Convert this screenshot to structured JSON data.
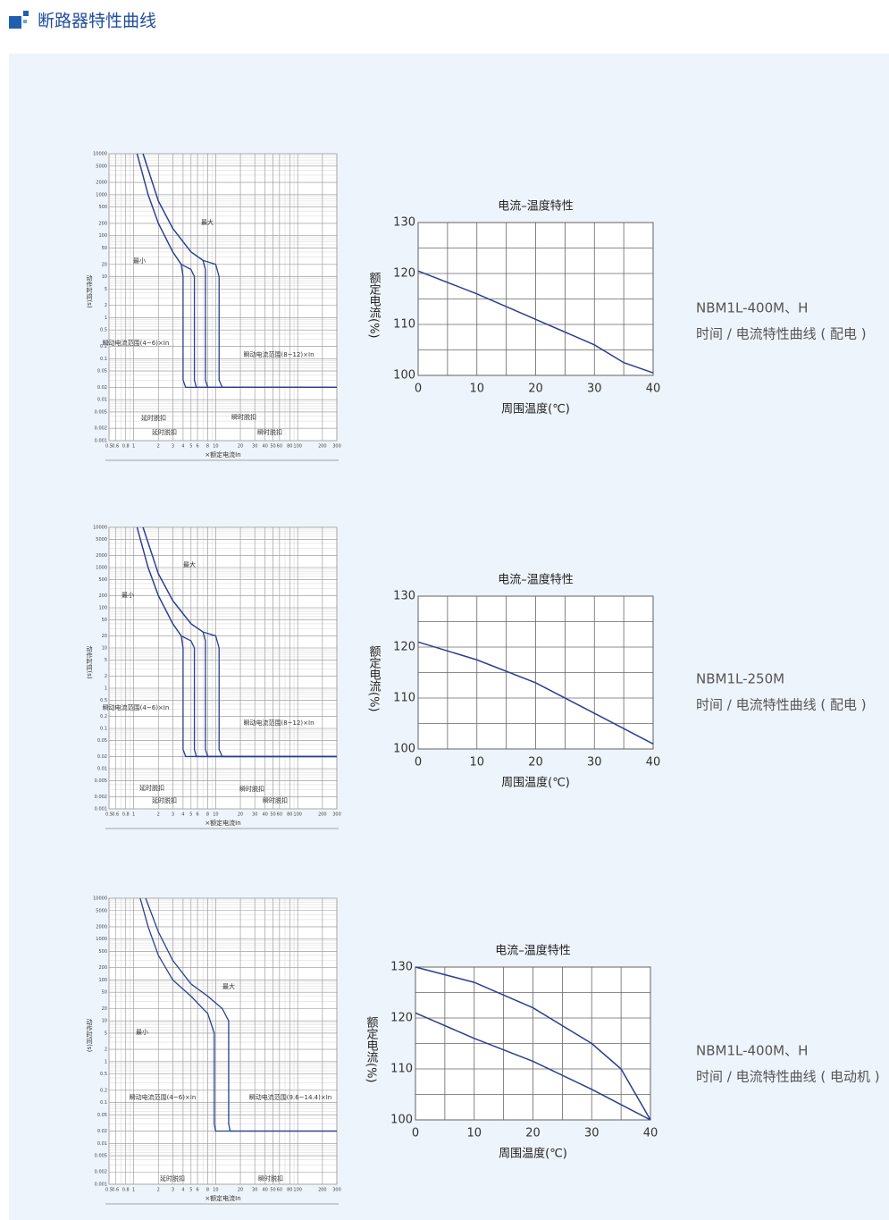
{
  "header": {
    "title": "断路器特性曲线"
  },
  "sections": [
    {
      "model": "NBM1L-400M、H",
      "description": "时间 / 电流特性曲线 ( 配电 )",
      "time_current": {
        "type": "line",
        "y_label": "动作时间(s)",
        "x_label": "×额定电流In",
        "log_x": true,
        "log_y": true,
        "color": "#2b3f8f",
        "xlim": [
          0.5,
          300
        ],
        "ylim": [
          0.001,
          10000
        ],
        "xticks": [
          0.5,
          0.6,
          0.8,
          1,
          2,
          3,
          4,
          5,
          6,
          8,
          10,
          20,
          30,
          40,
          50,
          60,
          80,
          100,
          200,
          300
        ],
        "yticks": [
          10000,
          5000,
          2000,
          1000,
          500,
          200,
          100,
          50,
          20,
          10,
          5,
          2,
          1,
          0.5,
          0.2,
          0.1,
          0.05,
          0.02,
          0.01,
          0.005,
          0.002,
          0.001
        ],
        "annotations": {
          "max": "最大",
          "min": "最小",
          "inst_low": "瞬动电流范围(4~6)×In",
          "inst_high": "瞬动电流范围(8~12)×In",
          "delay_trip": [
            "延时脱扣",
            "延时脱扣"
          ],
          "inst_trip": [
            "瞬时脱扣",
            "瞬时脱扣"
          ]
        },
        "series": [
          {
            "x": [
              1.1,
              1.5,
              2,
              3,
              3.8,
              4,
              4,
              4.3,
              300
            ],
            "values": [
              10000,
              1000,
              200,
              40,
              20,
              10,
              0.03,
              0.02,
              0.02
            ]
          },
          {
            "x": [
              1.1,
              1.5,
              2,
              3,
              3.8,
              5,
              5.5,
              5.5,
              5.8,
              300
            ],
            "values": [
              10000,
              1000,
              200,
              40,
              20,
              15,
              10,
              0.03,
              0.02,
              0.02
            ]
          },
          {
            "x": [
              1.3,
              2,
              3,
              5,
              7,
              7.5,
              7.5,
              8,
              300
            ],
            "values": [
              10000,
              700,
              150,
              40,
              25,
              15,
              0.03,
              0.02,
              0.02
            ]
          },
          {
            "x": [
              1.3,
              2,
              3,
              5,
              7,
              10,
              11,
              11,
              12,
              300
            ],
            "values": [
              10000,
              700,
              150,
              40,
              25,
              20,
              10,
              0.03,
              0.02,
              0.02
            ]
          }
        ]
      },
      "temperature": {
        "type": "line",
        "title": "电流–温度特性",
        "y_label": "额定电流(%)",
        "x_label": "周围温度(℃)",
        "grid": true,
        "color": "#2b3f8f",
        "xlim": [
          0,
          40
        ],
        "ylim": [
          100,
          130
        ],
        "xticks": [
          0,
          10,
          20,
          30,
          40
        ],
        "yticks": [
          100,
          110,
          120,
          130
        ],
        "series": [
          {
            "x": [
              0,
              10,
              20,
              30,
              35,
              40
            ],
            "values": [
              120.5,
              116,
              111,
              106,
              102.5,
              100.5
            ]
          }
        ]
      }
    },
    {
      "model": "NBM1L-250M",
      "description": "时间 / 电流特性曲线 ( 配电 )",
      "time_current": {
        "type": "line",
        "y_label": "动作时间(s)",
        "x_label": "×额定电流In",
        "log_x": true,
        "log_y": true,
        "color": "#2b3f8f",
        "xlim": [
          0.5,
          300
        ],
        "ylim": [
          0.001,
          10000
        ],
        "xticks": [
          0.5,
          0.6,
          0.8,
          1,
          2,
          3,
          4,
          5,
          6,
          8,
          10,
          20,
          30,
          40,
          50,
          60,
          80,
          100,
          200,
          300
        ],
        "yticks": [
          10000,
          5000,
          2000,
          1000,
          500,
          200,
          100,
          50,
          20,
          10,
          5,
          2,
          1,
          0.5,
          0.2,
          0.1,
          0.05,
          0.02,
          0.01,
          0.005,
          0.002,
          0.001
        ],
        "annotations": {
          "max": "最大",
          "min": "最小",
          "inst_low": "瞬动电流范围(4~6)×In",
          "inst_high": "瞬动电流范围(8~12)×In",
          "delay_trip": [
            "延时脱扣",
            "延时脱扣"
          ],
          "inst_trip": [
            "瞬时脱扣",
            "瞬时脱扣"
          ]
        },
        "series": [
          {
            "x": [
              1.1,
              1.5,
              2,
              3,
              3.8,
              4,
              4,
              4.3,
              300
            ],
            "values": [
              10000,
              1000,
              200,
              40,
              20,
              10,
              0.03,
              0.02,
              0.02
            ]
          },
          {
            "x": [
              1.1,
              1.5,
              2,
              3,
              3.8,
              5,
              5.5,
              5.5,
              5.8,
              300
            ],
            "values": [
              10000,
              1000,
              200,
              40,
              20,
              15,
              10,
              0.03,
              0.02,
              0.02
            ]
          },
          {
            "x": [
              1.3,
              2,
              3,
              5,
              7,
              7.5,
              7.5,
              8,
              300
            ],
            "values": [
              10000,
              700,
              150,
              40,
              25,
              15,
              0.03,
              0.02,
              0.02
            ]
          },
          {
            "x": [
              1.3,
              2,
              3,
              5,
              7,
              10,
              11,
              11,
              12,
              300
            ],
            "values": [
              10000,
              700,
              150,
              40,
              25,
              20,
              10,
              0.03,
              0.02,
              0.02
            ]
          }
        ]
      },
      "temperature": {
        "type": "line",
        "title": "电流–温度特性",
        "y_label": "额定电流(%)",
        "x_label": "周围温度(℃)",
        "grid": true,
        "color": "#2b3f8f",
        "xlim": [
          0,
          40
        ],
        "ylim": [
          100,
          130
        ],
        "xticks": [
          0,
          10,
          20,
          30,
          40
        ],
        "yticks": [
          100,
          110,
          120,
          130
        ],
        "series": [
          {
            "x": [
              0,
              10,
              20,
              30,
              40
            ],
            "values": [
              121,
              117.5,
              113,
              107,
              101
            ]
          }
        ]
      }
    },
    {
      "model": "NBM1L-400M、H",
      "description": "时间 / 电流特性曲线 ( 电动机 )",
      "time_current": {
        "type": "line",
        "y_label": "动作时间(s)",
        "x_label": "×额定电流In",
        "log_x": true,
        "log_y": true,
        "color": "#2b3f8f",
        "xlim": [
          0.5,
          300
        ],
        "ylim": [
          0.001,
          10000
        ],
        "xticks": [
          0.5,
          0.6,
          0.8,
          1,
          2,
          3,
          4,
          5,
          6,
          8,
          10,
          20,
          30,
          40,
          50,
          60,
          80,
          100,
          200,
          300
        ],
        "yticks": [
          10000,
          5000,
          2000,
          1000,
          500,
          200,
          100,
          50,
          20,
          10,
          5,
          2,
          1,
          0.5,
          0.2,
          0.1,
          0.05,
          0.02,
          0.01,
          0.005,
          0.002,
          0.001
        ],
        "annotations": {
          "max": "最大",
          "min": "最小",
          "inst_low": "瞬动电流范围(4~6)×In",
          "inst_high": "瞬动电流范围(9.6~14.4)×In",
          "delay_trip": [
            "延时脱扣"
          ],
          "inst_trip": [
            "瞬时脱扣"
          ]
        },
        "series": [
          {
            "x": [
              1.2,
              1.5,
              2,
              3,
              5,
              8,
              9.6,
              9.6,
              10,
              300
            ],
            "values": [
              10000,
              2000,
              400,
              100,
              40,
              15,
              5,
              0.03,
              0.02,
              0.02
            ]
          },
          {
            "x": [
              1.4,
              2,
              3,
              5,
              8,
              12,
              14.4,
              14.4,
              15,
              300
            ],
            "values": [
              10000,
              1500,
              300,
              80,
              40,
              20,
              10,
              0.03,
              0.02,
              0.02
            ]
          }
        ]
      },
      "temperature": {
        "type": "line",
        "title": "电流–温度特性",
        "y_label": "额定电流(%)",
        "x_label": "周围温度(℃)",
        "grid": true,
        "color": "#2b3f8f",
        "xlim": [
          0,
          40
        ],
        "ylim": [
          100,
          130
        ],
        "xticks": [
          0,
          10,
          20,
          30,
          40
        ],
        "yticks": [
          100,
          110,
          120,
          130
        ],
        "series": [
          {
            "x": [
              0,
              10,
              20,
              30,
              35,
              40
            ],
            "values": [
              130,
              127,
              122,
              115,
              110,
              100
            ]
          },
          {
            "x": [
              0,
              10,
              20,
              30,
              35,
              40
            ],
            "values": [
              121,
              116,
              111.5,
              106,
              103,
              100
            ]
          }
        ]
      }
    }
  ]
}
